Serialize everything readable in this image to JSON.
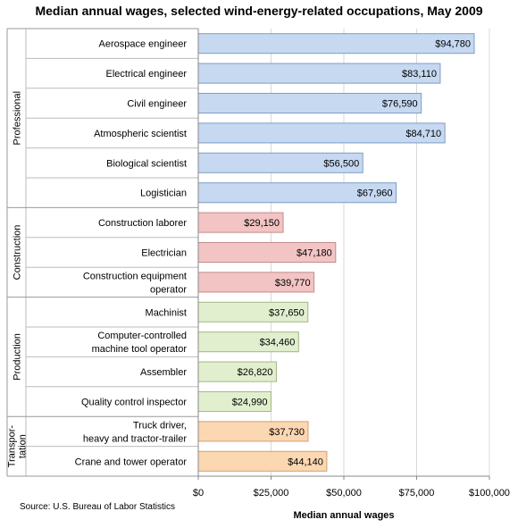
{
  "chart_data": {
    "type": "bar",
    "orientation": "horizontal",
    "title": "Median annual wages, selected wind-energy-related occupations, May 2009",
    "xlabel": "Median annual wages",
    "ylabel": "",
    "xlim": [
      0,
      100000
    ],
    "x_ticks": [
      "$0",
      "$25,000",
      "$50,000",
      "$75,000",
      "$100,000"
    ],
    "x_tick_values": [
      0,
      25000,
      50000,
      75000,
      100000
    ],
    "grid": true,
    "legend": "none",
    "source": "Source: U.S. Bureau of Labor Statistics",
    "groups": [
      {
        "name": "Professional",
        "name_lines": [
          "Professional"
        ],
        "color": "#c6d9f1",
        "border": "#7f9dc4",
        "items": [
          {
            "label": [
              "Aerospace engineer"
            ],
            "value": 94780,
            "value_label": "$94,780"
          },
          {
            "label": [
              "Electrical engineer"
            ],
            "value": 83110,
            "value_label": "$83,110"
          },
          {
            "label": [
              "Civil engineer"
            ],
            "value": 76590,
            "value_label": "$76,590"
          },
          {
            "label": [
              "Atmospheric scientist"
            ],
            "value": 84710,
            "value_label": "$84,710"
          },
          {
            "label": [
              "Biological scientist"
            ],
            "value": 56500,
            "value_label": "$56,500"
          },
          {
            "label": [
              "Logistician"
            ],
            "value": 67960,
            "value_label": "$67,960"
          }
        ]
      },
      {
        "name": "Construction",
        "name_lines": [
          "Construction"
        ],
        "color": "#f2c4c4",
        "border": "#c48a8a",
        "items": [
          {
            "label": [
              "Construction laborer"
            ],
            "value": 29150,
            "value_label": "$29,150"
          },
          {
            "label": [
              "Electrician"
            ],
            "value": 47180,
            "value_label": "$47,180"
          },
          {
            "label": [
              "Construction equipment",
              "operator"
            ],
            "value": 39770,
            "value_label": "$39,770"
          }
        ]
      },
      {
        "name": "Production",
        "name_lines": [
          "Production"
        ],
        "color": "#e2efcf",
        "border": "#a2b882",
        "items": [
          {
            "label": [
              "Machinist"
            ],
            "value": 37650,
            "value_label": "$37,650"
          },
          {
            "label": [
              "Computer-controlled",
              "machine tool operator"
            ],
            "value": 34460,
            "value_label": "$34,460"
          },
          {
            "label": [
              "Assembler"
            ],
            "value": 26820,
            "value_label": "$26,820"
          },
          {
            "label": [
              "Quality control inspector"
            ],
            "value": 24990,
            "value_label": "$24,990"
          }
        ]
      },
      {
        "name": "Transpor-tation",
        "name_lines": [
          "Transpor-",
          "tation"
        ],
        "color": "#fbd7b2",
        "border": "#d1a26e",
        "items": [
          {
            "label": [
              "Truck driver,",
              "heavy and tractor-trailer"
            ],
            "value": 37730,
            "value_label": "$37,730"
          },
          {
            "label": [
              "Crane and tower operator"
            ],
            "value": 44140,
            "value_label": "$44,140"
          }
        ]
      }
    ]
  }
}
